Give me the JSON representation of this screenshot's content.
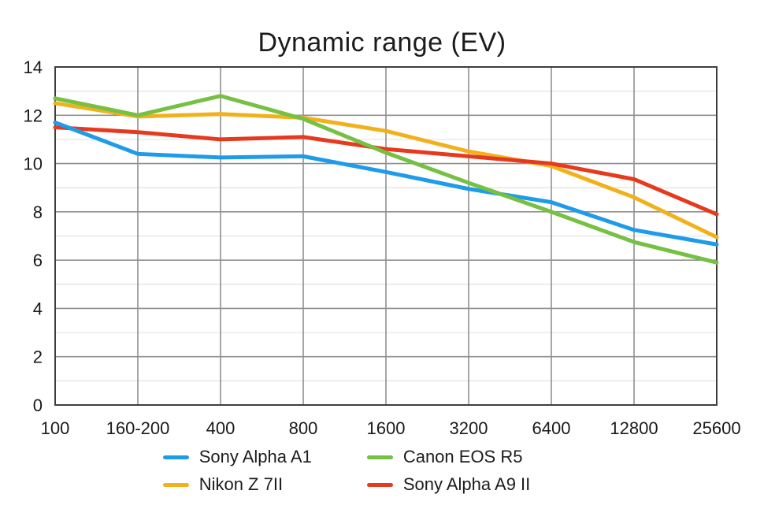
{
  "title": "Dynamic range (EV)",
  "chart_data": {
    "type": "line",
    "title": "Dynamic range (EV)",
    "xlabel": "",
    "ylabel": "",
    "categories": [
      "100",
      "160-200",
      "400",
      "800",
      "1600",
      "3200",
      "6400",
      "12800",
      "25600"
    ],
    "series": [
      {
        "name": "Sony Alpha A1",
        "color": "#1E9BE9",
        "values": [
          11.7,
          10.4,
          10.25,
          10.3,
          9.65,
          8.95,
          8.4,
          7.25,
          6.65
        ]
      },
      {
        "name": "Nikon Z 7II",
        "color": "#F1B11C",
        "values": [
          12.5,
          11.95,
          12.05,
          11.9,
          11.35,
          10.5,
          9.9,
          8.6,
          6.95
        ]
      },
      {
        "name": "Canon EOS R5",
        "color": "#76C043",
        "values": [
          12.7,
          12.0,
          12.8,
          11.85,
          10.45,
          9.2,
          8.0,
          6.75,
          5.9
        ]
      },
      {
        "name": "Sony Alpha A9 II",
        "color": "#E63A1E",
        "values": [
          11.5,
          11.3,
          11.0,
          11.1,
          10.6,
          10.3,
          10.0,
          9.35,
          7.9
        ]
      }
    ],
    "ylim": [
      0,
      14
    ],
    "y_major_step": 2,
    "y_minor_step": 1,
    "grid": true,
    "legend_position": "bottom"
  },
  "colors": {
    "major_grid": "#8f8f8f",
    "minor_grid": "#e3e3e3",
    "border": "#3f3f3f",
    "text": "#1a1a1a"
  }
}
